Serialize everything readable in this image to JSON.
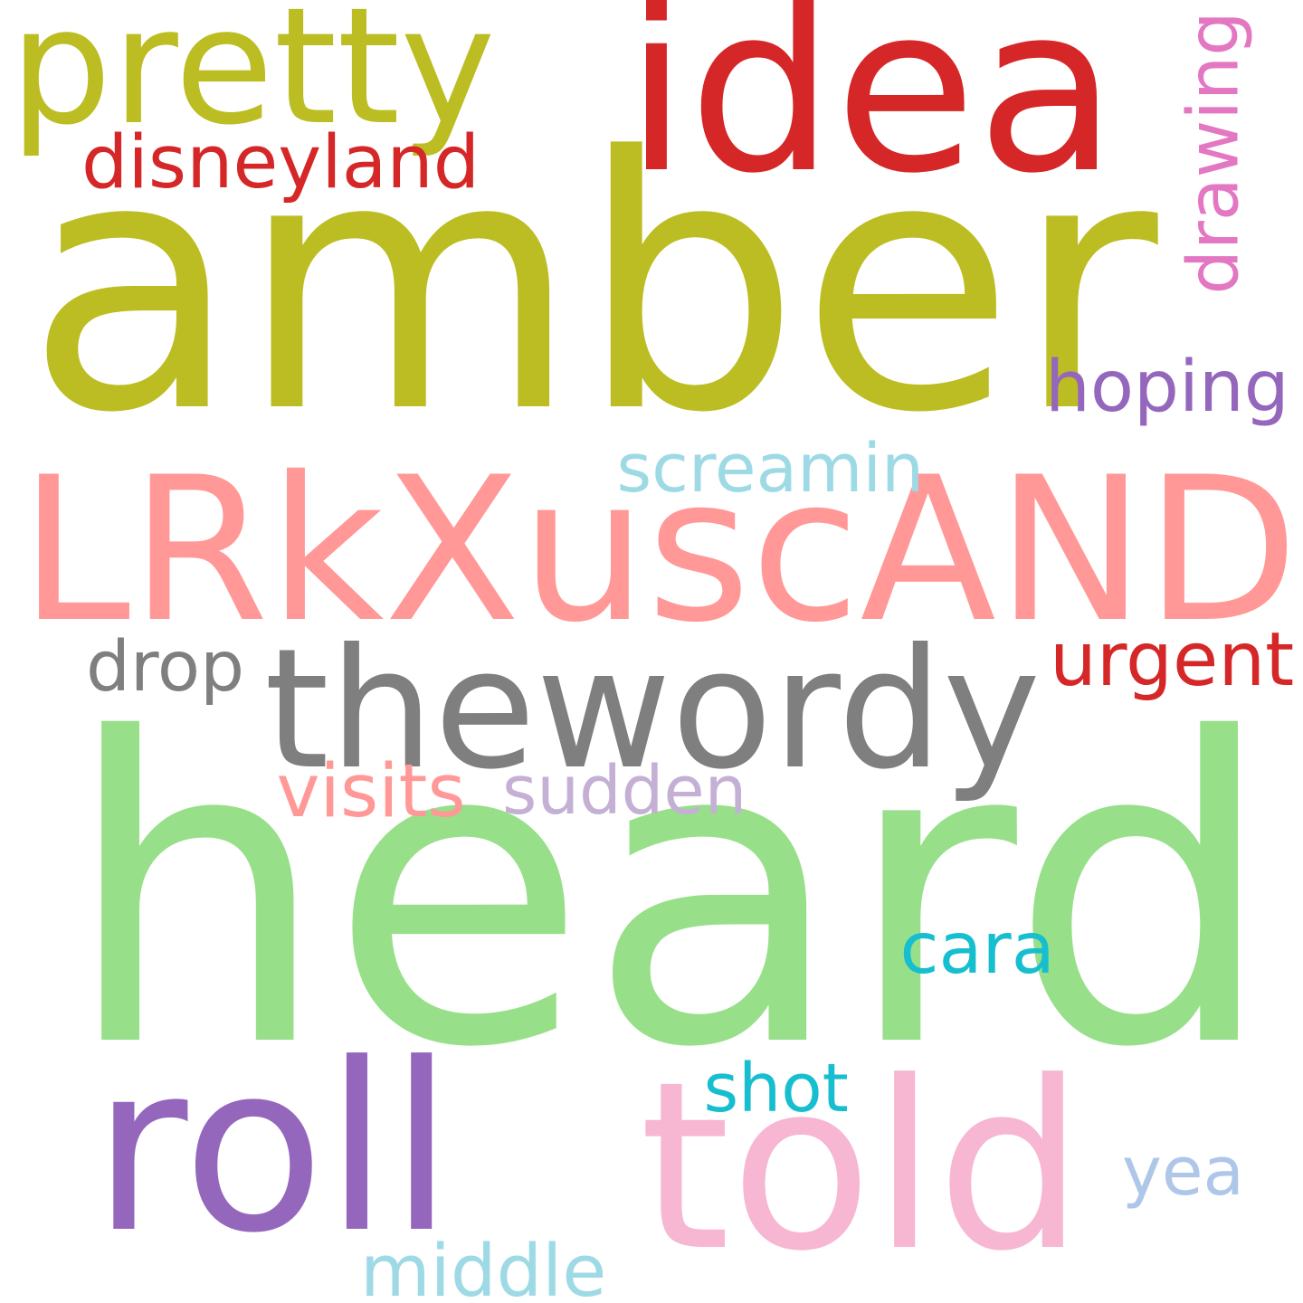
{
  "words": [
    {
      "key": "heard",
      "text": "heard",
      "color": "#98df8a"
    },
    {
      "key": "amber",
      "text": "amber",
      "color": "#bcbd22"
    },
    {
      "key": "lrkxuscand",
      "text": "LRkXuscAND",
      "color": "#ff9896"
    },
    {
      "key": "idea",
      "text": "idea",
      "color": "#d62728"
    },
    {
      "key": "theword",
      "text": "thewordy",
      "color": "#7f7f7f"
    },
    {
      "key": "told",
      "text": "told",
      "color": "#f7b6d2"
    },
    {
      "key": "roll",
      "text": "roll",
      "color": "#9467bd"
    },
    {
      "key": "pretty",
      "text": "pretty",
      "color": "#bcbd22"
    },
    {
      "key": "disneyland",
      "text": "disneyland",
      "color": "#d62728"
    },
    {
      "key": "drawing",
      "text": "drawing",
      "color": "#e377c2"
    },
    {
      "key": "hoping",
      "text": "hoping",
      "color": "#9467bd"
    },
    {
      "key": "screamin",
      "text": "screamin",
      "color": "#9edae5"
    },
    {
      "key": "urgent",
      "text": "urgent",
      "color": "#d62728"
    },
    {
      "key": "drop",
      "text": "drop",
      "color": "#7f7f7f"
    },
    {
      "key": "visits",
      "text": "visits",
      "color": "#ff9896"
    },
    {
      "key": "sudden",
      "text": "sudden",
      "color": "#c5b0d5"
    },
    {
      "key": "cara",
      "text": "cara",
      "color": "#17becf"
    },
    {
      "key": "shot",
      "text": "shot",
      "color": "#17becf"
    },
    {
      "key": "yea",
      "text": "yea",
      "color": "#aec7e8"
    },
    {
      "key": "middle",
      "text": "middle",
      "color": "#9edae5"
    }
  ]
}
